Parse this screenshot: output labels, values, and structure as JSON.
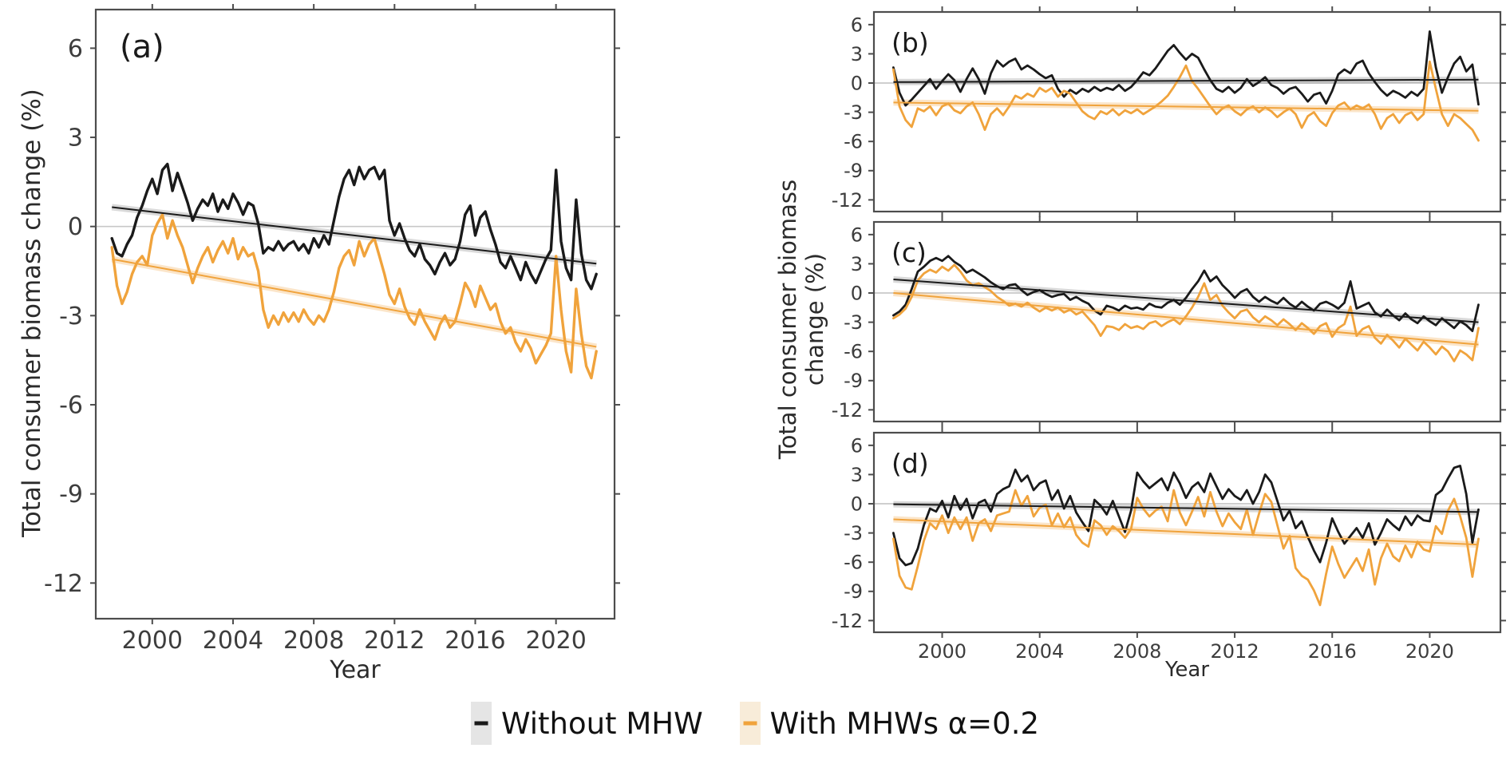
{
  "figure": {
    "left_ylabel": "Total consumer biomass change (%)",
    "right_ylabel_line1": "Total consumer biomass",
    "right_ylabel_line2": "change (%)",
    "xlabel_left": "Year",
    "xlabel_right": "Year",
    "legend": [
      {
        "label": "Without MHW",
        "line_color": "#1a1a1a",
        "swatch_bg": "#e5e5e5"
      },
      {
        "label": "With MHWs α=0.2",
        "line_color": "#f0a33c",
        "swatch_bg": "#f8ecd9"
      }
    ]
  },
  "chart_data": {
    "type": "line",
    "x_start": 1998.0,
    "x_step": 0.25,
    "xlim": [
      1997.2,
      2022.9
    ],
    "ylim": [
      -13.2,
      7.3
    ],
    "xticks": [
      2000,
      2004,
      2008,
      2012,
      2016,
      2020
    ],
    "yticks": [
      6,
      3,
      0,
      -3,
      -6,
      -9,
      -12
    ],
    "xlabel": "Year",
    "ylabel": "Total consumer biomass change (%)",
    "grid": "zero-line-only",
    "legend_position": "bottom",
    "colors": {
      "without_mhw": "#1a1a1a",
      "with_mhws": "#f0a33c",
      "zero_line": "#c8c8c8",
      "axis": "#4d4d4d",
      "tick_text": "#3d3d3d",
      "band_black": "rgba(120,120,120,0.28)",
      "band_orange": "rgba(240,163,60,0.28)"
    },
    "panels": [
      {
        "label": "(a)",
        "series": [
          {
            "name": "Without MHW",
            "color": "#1a1a1a",
            "y": [
              -0.4,
              -0.9,
              -1.0,
              -0.6,
              -0.3,
              0.3,
              0.7,
              1.2,
              1.6,
              1.1,
              1.9,
              2.1,
              1.2,
              1.8,
              1.3,
              0.8,
              0.2,
              0.6,
              0.9,
              0.7,
              1.1,
              0.5,
              0.9,
              0.6,
              1.1,
              0.8,
              0.4,
              0.8,
              0.7,
              0.1,
              -0.9,
              -0.7,
              -0.8,
              -0.5,
              -0.8,
              -0.6,
              -0.5,
              -0.8,
              -0.6,
              -0.9,
              -0.4,
              -0.7,
              -0.3,
              -0.6,
              0.2,
              1.0,
              1.6,
              1.9,
              1.4,
              2.0,
              1.6,
              1.9,
              2.0,
              1.6,
              1.9,
              0.2,
              -0.3,
              0.1,
              -0.4,
              -0.8,
              -1.0,
              -0.6,
              -1.1,
              -1.3,
              -1.6,
              -1.2,
              -0.9,
              -1.3,
              -1.1,
              -0.5,
              0.4,
              0.7,
              -0.3,
              0.3,
              0.5,
              -0.1,
              -0.6,
              -1.2,
              -1.4,
              -1.0,
              -1.4,
              -1.8,
              -1.2,
              -1.6,
              -1.9,
              -1.5,
              -1.1,
              -0.8,
              1.9,
              -0.5,
              -1.4,
              -1.8,
              0.9,
              -0.9,
              -1.8,
              -2.1,
              -1.6
            ]
          },
          {
            "name": "With MHWs α=0.2",
            "color": "#f0a33c",
            "y": [
              -0.7,
              -2.0,
              -2.6,
              -2.2,
              -1.6,
              -1.2,
              -1.0,
              -1.3,
              -0.3,
              0.1,
              0.4,
              -0.4,
              0.2,
              -0.3,
              -0.7,
              -1.3,
              -1.9,
              -1.4,
              -1.0,
              -0.7,
              -1.2,
              -0.8,
              -0.5,
              -0.9,
              -0.4,
              -1.1,
              -0.7,
              -1.0,
              -0.9,
              -1.5,
              -2.8,
              -3.4,
              -3.0,
              -3.3,
              -2.9,
              -3.2,
              -2.9,
              -3.2,
              -2.8,
              -3.1,
              -3.3,
              -3.0,
              -3.2,
              -2.8,
              -2.2,
              -1.4,
              -1.0,
              -0.8,
              -1.3,
              -0.5,
              -1.0,
              -0.6,
              -0.4,
              -1.0,
              -1.6,
              -2.3,
              -2.6,
              -2.1,
              -2.7,
              -3.1,
              -3.3,
              -2.8,
              -3.2,
              -3.5,
              -3.8,
              -3.3,
              -3.0,
              -3.4,
              -3.2,
              -2.6,
              -1.9,
              -2.2,
              -2.7,
              -2.0,
              -2.4,
              -2.8,
              -2.6,
              -3.2,
              -3.6,
              -3.4,
              -3.9,
              -4.2,
              -3.8,
              -4.1,
              -4.6,
              -4.3,
              -4.0,
              -3.6,
              -1.0,
              -2.8,
              -4.2,
              -4.9,
              -2.1,
              -3.6,
              -4.7,
              -5.1,
              -4.2
            ]
          }
        ],
        "trends": [
          {
            "name": "Without MHW trend",
            "color": "#1a1a1a",
            "x": [
              1998,
              2022
            ],
            "y": [
              0.65,
              -1.25
            ]
          },
          {
            "name": "With MHWs trend",
            "color": "#f0a33c",
            "x": [
              1998,
              2022
            ],
            "y": [
              -1.1,
              -4.05
            ]
          }
        ]
      },
      {
        "label": "(b)",
        "series": [
          {
            "name": "Without MHW",
            "color": "#1a1a1a",
            "y": [
              1.6,
              -1.0,
              -2.3,
              -1.7,
              -1.0,
              -0.3,
              0.4,
              -0.6,
              0.2,
              0.9,
              0.3,
              -0.9,
              0.4,
              1.5,
              0.4,
              -1.1,
              1.0,
              2.3,
              1.7,
              2.2,
              2.5,
              1.4,
              1.8,
              1.4,
              0.9,
              0.5,
              0.8,
              -0.6,
              -1.4,
              -0.7,
              -1.1,
              -0.6,
              -0.9,
              -0.4,
              -0.8,
              -0.5,
              -0.7,
              -0.2,
              -0.8,
              -0.4,
              0.3,
              1.1,
              0.8,
              1.5,
              2.4,
              3.3,
              3.9,
              3.1,
              2.4,
              3.0,
              2.6,
              1.4,
              0.3,
              -0.6,
              -0.9,
              -0.4,
              -1.0,
              -0.5,
              0.4,
              -0.3,
              0.1,
              0.6,
              -0.2,
              -0.5,
              -1.1,
              -0.6,
              -0.4,
              -1.1,
              -1.9,
              -1.2,
              -1.0,
              -2.1,
              -0.8,
              0.9,
              1.4,
              1.0,
              2.0,
              2.3,
              1.0,
              0.1,
              -0.7,
              -1.3,
              -0.8,
              -1.1,
              -1.5,
              -0.9,
              -1.3,
              -0.6,
              5.3,
              1.6,
              -1.0,
              0.6,
              2.0,
              2.7,
              1.2,
              1.9,
              -2.2
            ]
          },
          {
            "name": "With MHWs α=0.2",
            "color": "#f0a33c",
            "y": [
              1.4,
              -2.4,
              -3.8,
              -4.5,
              -2.6,
              -2.9,
              -2.4,
              -3.3,
              -2.4,
              -2.1,
              -2.8,
              -3.1,
              -2.4,
              -2.0,
              -3.2,
              -4.8,
              -3.2,
              -2.6,
              -3.3,
              -2.4,
              -1.3,
              -1.6,
              -1.1,
              -1.4,
              -0.5,
              -0.9,
              -0.5,
              -1.4,
              -0.8,
              -1.1,
              -2.0,
              -2.9,
              -3.4,
              -3.7,
              -2.9,
              -3.2,
              -2.7,
              -3.3,
              -2.8,
              -3.1,
              -2.7,
              -3.2,
              -2.8,
              -2.4,
              -1.9,
              -1.3,
              -0.4,
              0.6,
              1.8,
              0.2,
              -0.6,
              -1.5,
              -2.4,
              -3.2,
              -2.6,
              -2.3,
              -2.9,
              -3.3,
              -2.7,
              -2.4,
              -3.0,
              -2.5,
              -2.9,
              -3.5,
              -3.0,
              -2.6,
              -3.2,
              -4.6,
              -3.4,
              -3.0,
              -3.9,
              -4.4,
              -3.1,
              -2.3,
              -2.0,
              -2.7,
              -2.3,
              -2.6,
              -2.2,
              -3.2,
              -4.7,
              -3.6,
              -3.2,
              -4.1,
              -3.3,
              -3.0,
              -3.8,
              -3.2,
              2.2,
              -0.6,
              -3.2,
              -4.4,
              -3.2,
              -3.6,
              -4.2,
              -4.8,
              -5.9
            ]
          }
        ],
        "trends": [
          {
            "name": "Without MHW trend",
            "color": "#1a1a1a",
            "x": [
              1998,
              2022
            ],
            "y": [
              0.1,
              0.35
            ]
          },
          {
            "name": "With MHWs trend",
            "color": "#f0a33c",
            "x": [
              1998,
              2022
            ],
            "y": [
              -2.0,
              -2.85
            ]
          }
        ]
      },
      {
        "label": "(c)",
        "series": [
          {
            "name": "Without MHW",
            "color": "#1a1a1a",
            "y": [
              -2.3,
              -1.9,
              -1.2,
              0.4,
              2.2,
              2.7,
              3.3,
              3.6,
              3.3,
              3.8,
              3.2,
              2.8,
              2.1,
              2.4,
              2.0,
              1.6,
              1.1,
              0.7,
              0.4,
              0.8,
              0.9,
              0.3,
              -0.2,
              0.1,
              0.3,
              -0.1,
              -0.4,
              -0.2,
              -0.1,
              -0.7,
              -0.4,
              -0.8,
              -1.1,
              -1.8,
              -2.2,
              -1.3,
              -1.5,
              -1.8,
              -1.3,
              -1.6,
              -1.5,
              -1.7,
              -1.1,
              -1.4,
              -1.5,
              -1.0,
              -0.7,
              -1.2,
              -0.5,
              0.4,
              1.2,
              2.3,
              1.2,
              1.7,
              0.8,
              0.2,
              -0.5,
              0.1,
              0.4,
              -0.4,
              -0.9,
              -0.4,
              -0.8,
              -1.1,
              -0.5,
              -1.1,
              -1.5,
              -0.9,
              -1.4,
              -1.8,
              -1.1,
              -0.9,
              -1.2,
              -1.6,
              -1.0,
              1.2,
              -1.6,
              -1.3,
              -1.0,
              -2.0,
              -2.4,
              -1.7,
              -2.3,
              -2.8,
              -2.1,
              -2.7,
              -3.1,
              -2.4,
              -2.9,
              -3.3,
              -2.6,
              -3.1,
              -3.6,
              -2.9,
              -3.3,
              -3.9,
              -1.2
            ]
          },
          {
            "name": "With MHWs α=0.2",
            "color": "#f0a33c",
            "y": [
              -2.6,
              -2.2,
              -1.6,
              -0.4,
              1.3,
              2.0,
              2.4,
              2.1,
              2.7,
              2.3,
              2.9,
              2.2,
              1.3,
              0.8,
              1.0,
              0.6,
              0.2,
              -0.4,
              -0.8,
              -1.3,
              -1.1,
              -1.4,
              -1.0,
              -1.5,
              -1.9,
              -1.5,
              -1.8,
              -1.5,
              -2.0,
              -1.7,
              -2.2,
              -1.9,
              -2.6,
              -3.3,
              -4.4,
              -3.4,
              -3.5,
              -3.8,
              -3.2,
              -3.6,
              -3.4,
              -3.7,
              -3.1,
              -2.9,
              -3.4,
              -3.0,
              -2.7,
              -3.2,
              -2.4,
              -1.5,
              -0.4,
              1.0,
              -0.7,
              -0.2,
              -1.3,
              -2.0,
              -2.6,
              -1.9,
              -1.7,
              -2.5,
              -3.0,
              -2.4,
              -2.8,
              -3.3,
              -2.7,
              -3.2,
              -3.8,
              -3.1,
              -3.6,
              -4.2,
              -3.4,
              -3.1,
              -4.5,
              -3.6,
              -3.2,
              -1.4,
              -4.4,
              -3.7,
              -3.4,
              -4.6,
              -5.2,
              -4.3,
              -4.9,
              -5.6,
              -4.7,
              -5.3,
              -5.9,
              -5.0,
              -5.6,
              -6.3,
              -5.5,
              -6.0,
              -7.0,
              -5.9,
              -6.3,
              -6.9,
              -3.6
            ]
          }
        ],
        "trends": [
          {
            "name": "Without MHW trend",
            "color": "#1a1a1a",
            "x": [
              1998,
              2022
            ],
            "y": [
              1.4,
              -3.0
            ]
          },
          {
            "name": "With MHWs trend",
            "color": "#f0a33c",
            "x": [
              1998,
              2022
            ],
            "y": [
              0.0,
              -5.3
            ]
          }
        ]
      },
      {
        "label": "(d)",
        "series": [
          {
            "name": "Without MHW",
            "color": "#1a1a1a",
            "y": [
              -3.0,
              -5.6,
              -6.3,
              -6.1,
              -4.6,
              -2.2,
              -0.5,
              -0.8,
              0.3,
              -1.4,
              0.8,
              -0.6,
              0.5,
              -1.5,
              0.1,
              0.4,
              -0.8,
              1.0,
              1.5,
              1.8,
              3.5,
              2.3,
              2.9,
              1.4,
              2.1,
              2.4,
              0.4,
              1.4,
              -0.5,
              0.8,
              -0.9,
              -1.9,
              -2.8,
              0.4,
              -0.2,
              -1.1,
              0.3,
              -1.3,
              -2.9,
              -0.7,
              3.2,
              2.3,
              1.6,
              2.1,
              2.6,
              1.4,
              3.2,
              2.1,
              0.6,
              1.7,
              2.2,
              1.2,
              3.1,
              1.8,
              0.5,
              1.5,
              0.8,
              0.4,
              1.4,
              0.0,
              1.2,
              3.0,
              2.2,
              0.3,
              -1.7,
              -0.7,
              -2.5,
              -1.8,
              -3.4,
              -4.8,
              -6.0,
              -4.0,
              -1.5,
              -2.9,
              -4.1,
              -3.3,
              -2.5,
              -3.5,
              -2.0,
              -4.2,
              -3.0,
              -1.6,
              -2.2,
              -2.7,
              -1.3,
              -2.2,
              -1.2,
              -1.7,
              -1.8,
              0.9,
              1.4,
              2.6,
              3.7,
              3.9,
              1.0,
              -4.0,
              -0.6
            ]
          },
          {
            "name": "With MHWs α=0.2",
            "color": "#f0a33c",
            "y": [
              -3.6,
              -7.4,
              -8.6,
              -8.8,
              -6.4,
              -3.8,
              -2.0,
              -2.6,
              -1.2,
              -3.0,
              -1.4,
              -2.6,
              -1.4,
              -3.8,
              -2.0,
              -1.6,
              -2.8,
              -1.2,
              -1.0,
              -0.8,
              1.4,
              -0.2,
              0.8,
              -1.3,
              -0.4,
              -0.1,
              -2.2,
              -1.0,
              -2.4,
              -1.4,
              -3.2,
              -4.0,
              -4.4,
              -1.7,
              -2.2,
              -3.2,
              -2.3,
              -2.8,
              -3.5,
              -2.6,
              0.6,
              -0.5,
              -1.3,
              -0.7,
              -0.3,
              -1.8,
              1.4,
              -0.9,
              -2.2,
              -0.8,
              0.7,
              -1.3,
              1.2,
              -0.8,
              -2.3,
              -1.0,
              -1.9,
              -2.6,
              -0.6,
              -3.2,
              -1.0,
              1.0,
              0.2,
              -2.2,
              -4.6,
              -3.3,
              -6.6,
              -7.4,
              -7.8,
              -8.9,
              -10.4,
              -7.2,
              -4.4,
              -6.2,
              -7.6,
              -6.6,
              -5.6,
              -6.9,
              -4.7,
              -8.3,
              -5.6,
              -4.1,
              -5.4,
              -5.9,
              -4.3,
              -5.5,
              -3.9,
              -4.7,
              -4.9,
              -2.3,
              -3.1,
              -0.7,
              0.5,
              -1.3,
              -3.5,
              -7.5,
              -3.6
            ]
          }
        ],
        "trends": [
          {
            "name": "Without MHW trend",
            "color": "#1a1a1a",
            "x": [
              1998,
              2022
            ],
            "y": [
              -0.05,
              -0.85
            ]
          },
          {
            "name": "With MHWs trend",
            "color": "#f0a33c",
            "x": [
              1998,
              2022
            ],
            "y": [
              -1.6,
              -4.2
            ]
          }
        ]
      }
    ]
  }
}
